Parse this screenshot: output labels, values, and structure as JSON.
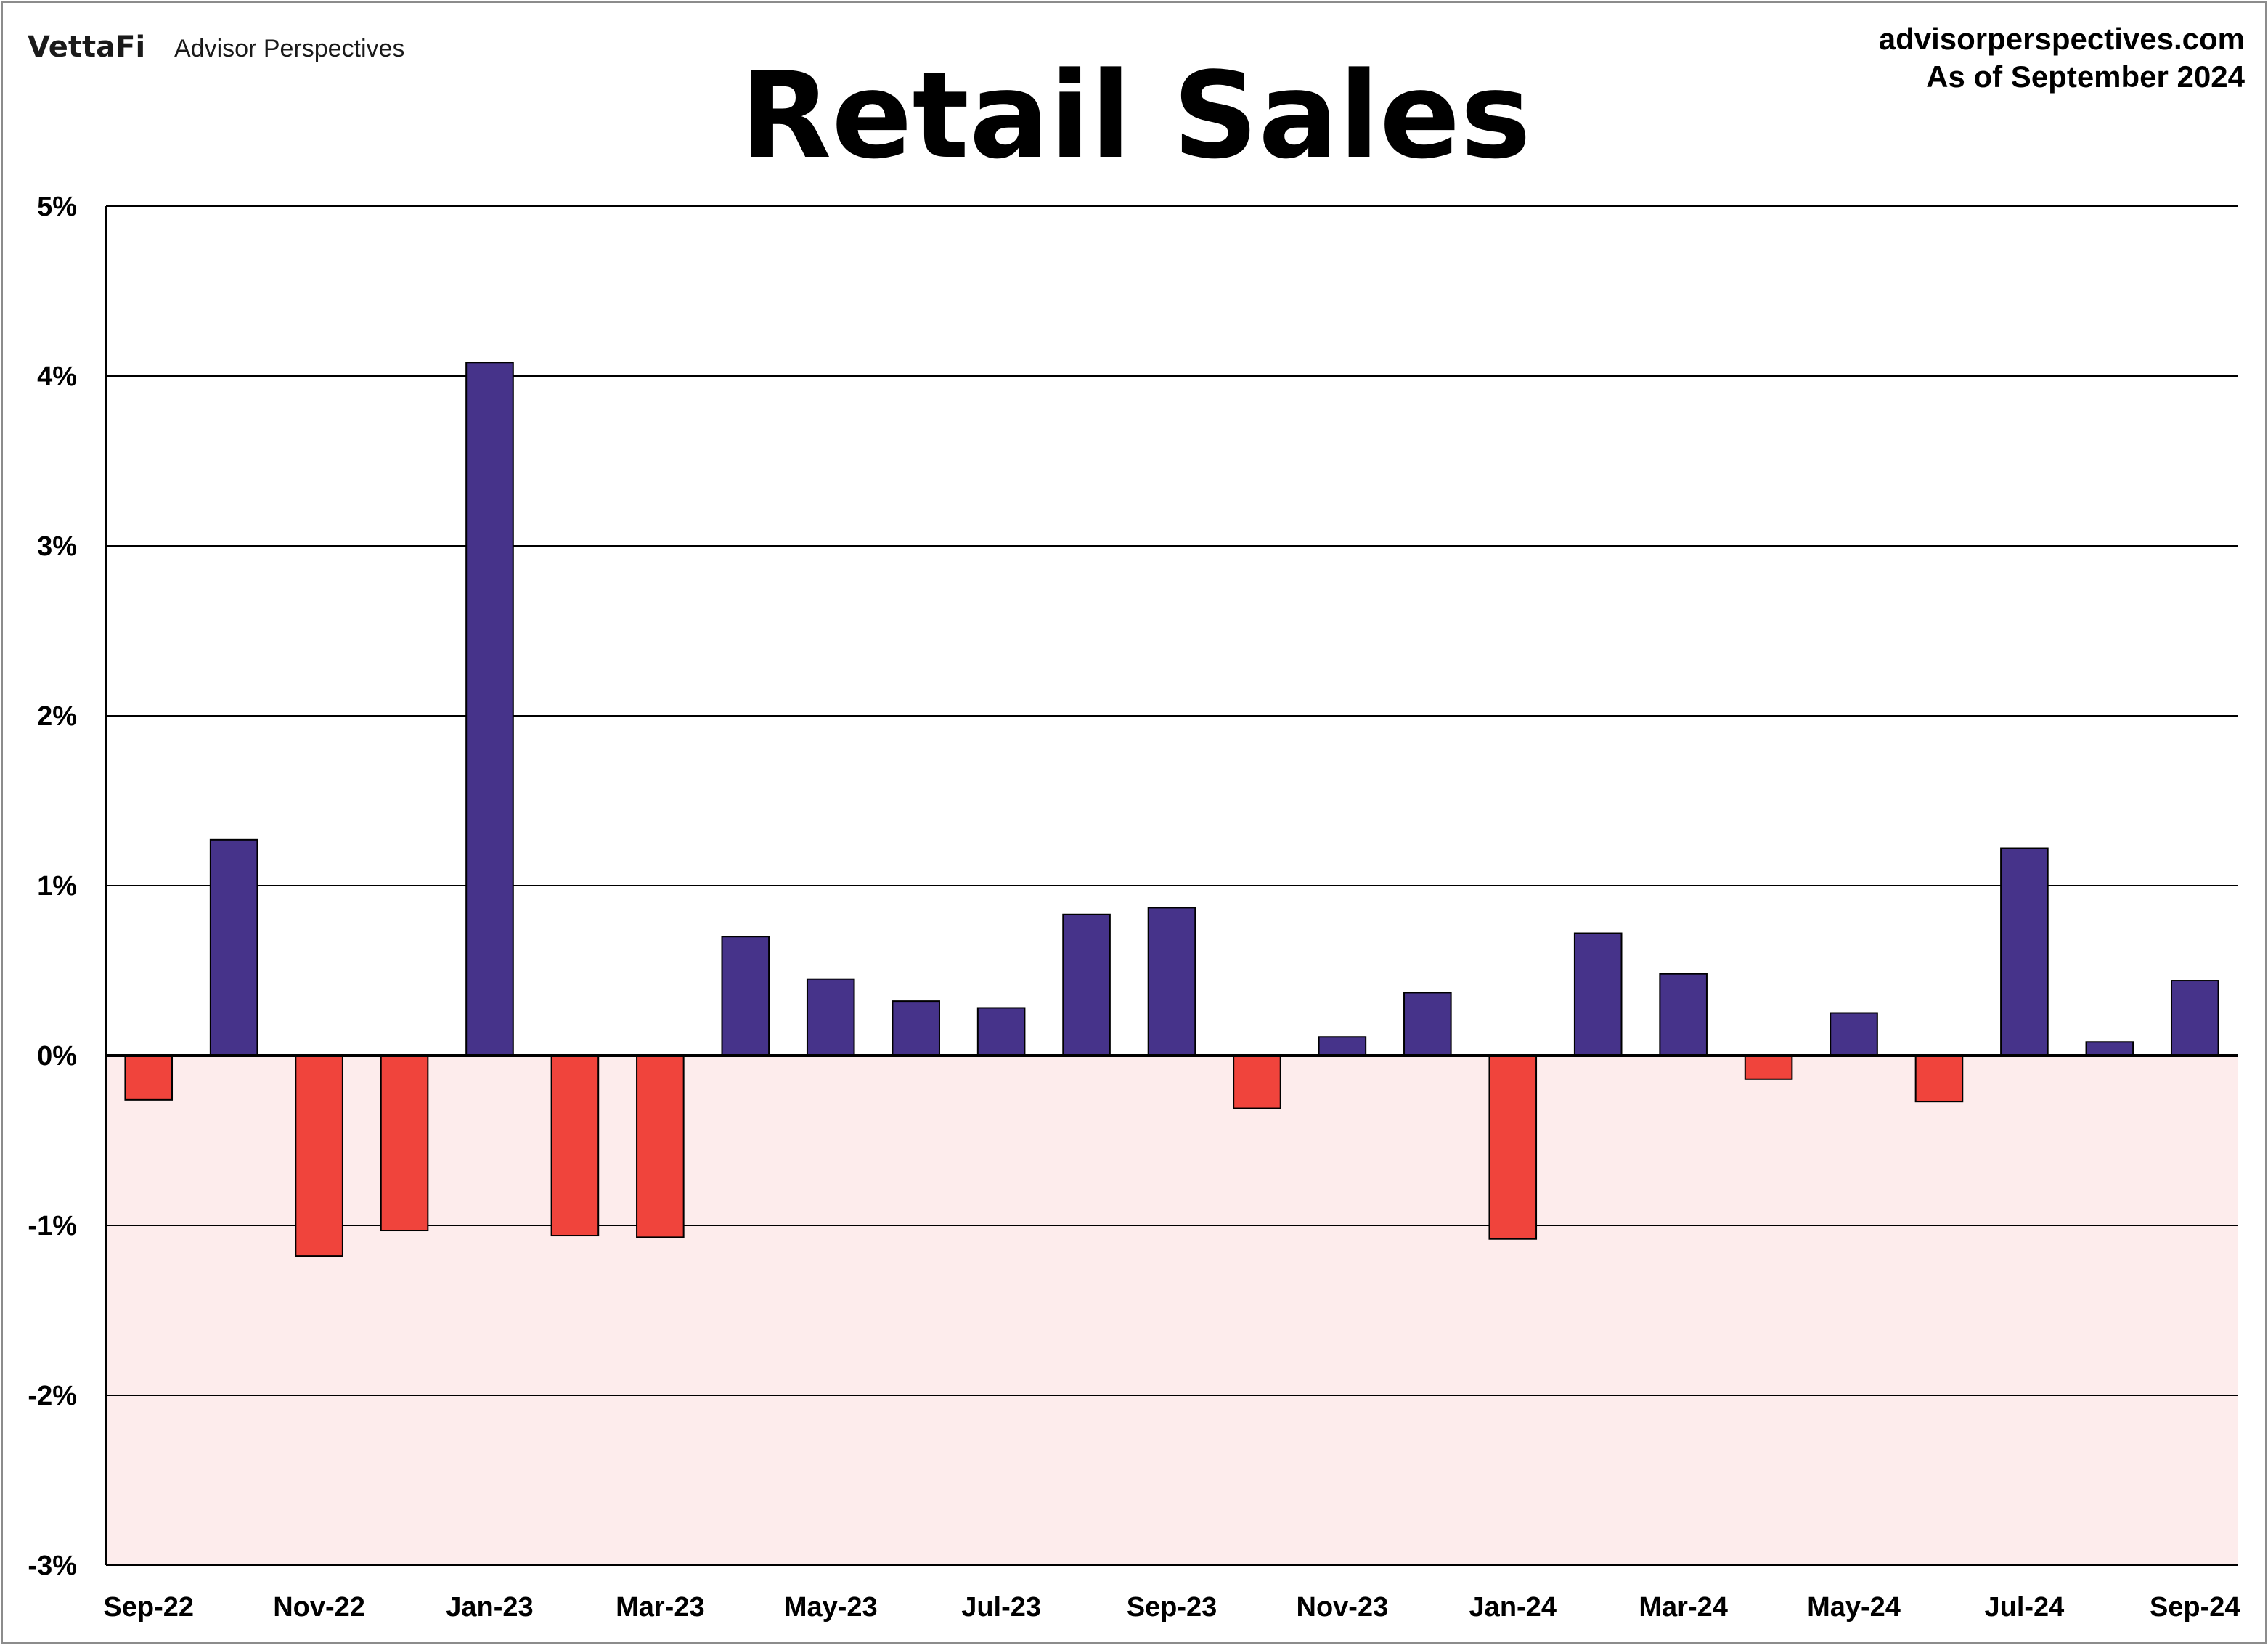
{
  "branding": {
    "logo": "VettaFi",
    "name": "Advisor Perspectives"
  },
  "source": {
    "site": "advisorperspectives.com",
    "as_of": "As of September 2024"
  },
  "colors": {
    "positive": "#46338a",
    "negative": "#f0443c",
    "negative_zone": "#fdecec",
    "grid": "#000000"
  },
  "chart_data": {
    "type": "bar",
    "title": "Retail Sales",
    "xlabel": "",
    "ylabel": "",
    "ylim": [
      -3,
      5
    ],
    "yticks": [
      5,
      4,
      3,
      2,
      1,
      0,
      -1,
      -2,
      -3
    ],
    "ytick_labels": [
      "5%",
      "4%",
      "3%",
      "2%",
      "1%",
      "0%",
      "-1%",
      "-2%",
      "-3%"
    ],
    "grid": true,
    "negative_region_shaded": true,
    "categories": [
      "Sep-22",
      "Oct-22",
      "Nov-22",
      "Dec-22",
      "Jan-23",
      "Feb-23",
      "Mar-23",
      "Apr-23",
      "May-23",
      "Jun-23",
      "Jul-23",
      "Aug-23",
      "Sep-23",
      "Oct-23",
      "Nov-23",
      "Dec-23",
      "Jan-24",
      "Feb-24",
      "Mar-24",
      "Apr-24",
      "May-24",
      "Jun-24",
      "Jul-24",
      "Aug-24",
      "Sep-24"
    ],
    "values": [
      -0.26,
      1.27,
      -1.18,
      -1.03,
      4.08,
      -1.06,
      -1.07,
      0.7,
      0.45,
      0.32,
      0.28,
      0.83,
      0.87,
      -0.31,
      0.11,
      0.37,
      -1.08,
      0.72,
      0.48,
      -0.14,
      0.25,
      -0.27,
      1.22,
      0.08,
      0.44
    ],
    "xtick_labels": [
      "Sep-22",
      "Nov-22",
      "Jan-23",
      "Mar-23",
      "May-23",
      "Jul-23",
      "Sep-23",
      "Nov-23",
      "Jan-24",
      "Mar-24",
      "May-24",
      "Jul-24",
      "Sep-24"
    ]
  }
}
